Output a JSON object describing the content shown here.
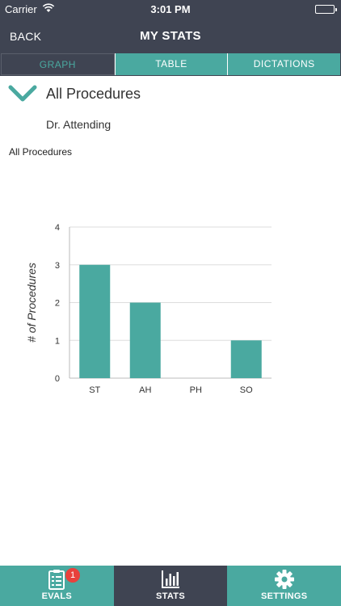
{
  "status_bar": {
    "carrier": "Carrier",
    "time": "3:01 PM"
  },
  "nav": {
    "back_label": "BACK",
    "title": "MY STATS"
  },
  "tabs": [
    {
      "label": "GRAPH",
      "active": true
    },
    {
      "label": "TABLE",
      "active": false
    },
    {
      "label": "DICTATIONS",
      "active": false
    }
  ],
  "filter": {
    "procedure": "All Procedures",
    "attending": "Dr. Attending"
  },
  "chart_data": {
    "type": "bar",
    "title": "All Procedures",
    "categories": [
      "ST",
      "AH",
      "PH",
      "SO"
    ],
    "values": [
      3,
      2,
      0,
      1
    ],
    "ylabel": "# of Procedures",
    "xlabel": "",
    "ylim": [
      0,
      4
    ],
    "yticks": [
      0,
      1,
      2,
      3,
      4
    ],
    "grid": true,
    "bar_color": "#4aa9a0"
  },
  "tab_bar": {
    "items": [
      {
        "label": "EVALS",
        "icon": "clipboard-icon",
        "badge": "1",
        "active": false
      },
      {
        "label": "STATS",
        "icon": "bar-chart-icon",
        "active": true
      },
      {
        "label": "SETTINGS",
        "icon": "gear-icon",
        "active": false
      }
    ]
  },
  "colors": {
    "dark": "#3f4452",
    "accent": "#4aa9a0",
    "badge": "#e8413c"
  }
}
